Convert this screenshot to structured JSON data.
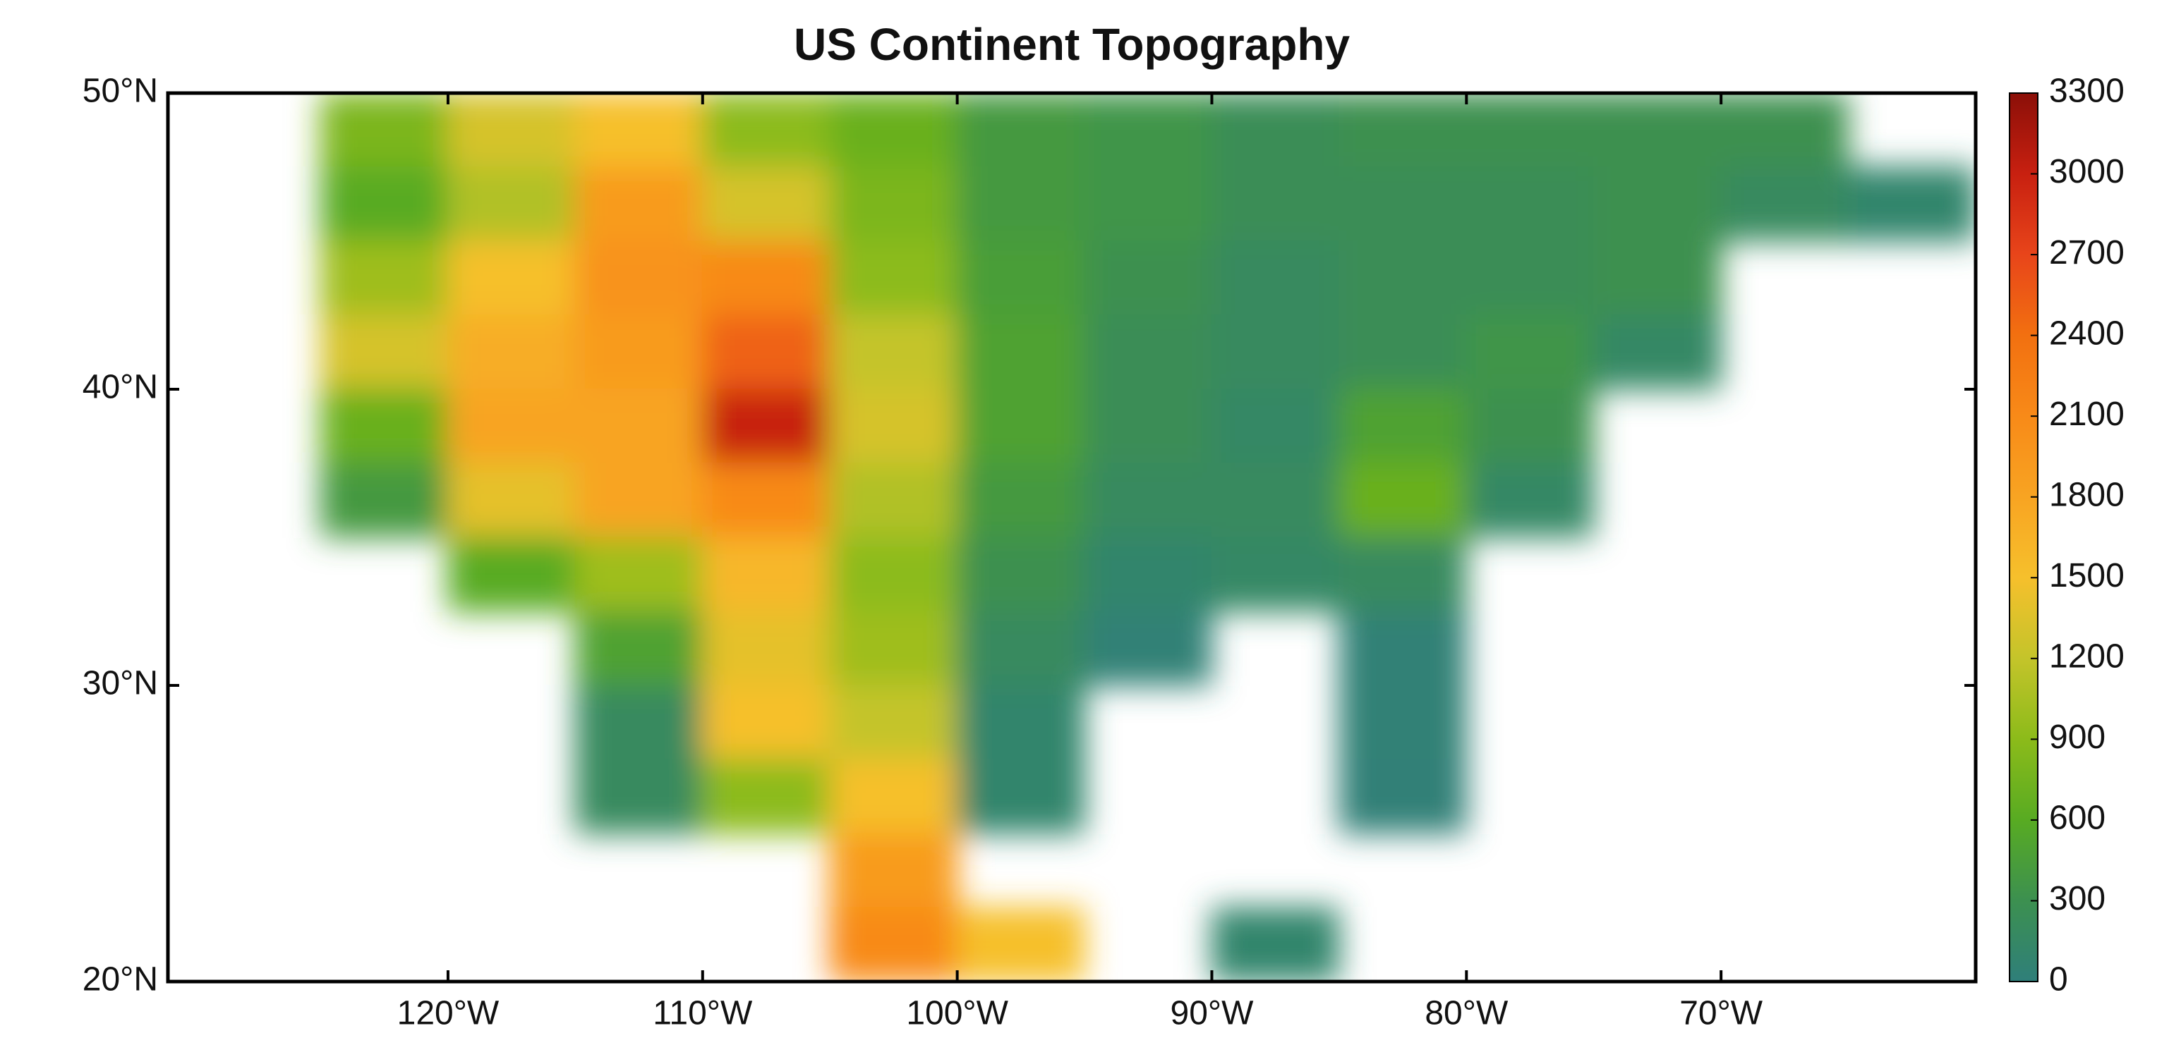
{
  "chart_data": {
    "type": "map",
    "title": "US Continent Topography",
    "xlim": [
      -131,
      -60
    ],
    "ylim": [
      20,
      50
    ],
    "xticks": [
      {
        "value": -120,
        "label": "120°W"
      },
      {
        "value": -110,
        "label": "110°W"
      },
      {
        "value": -100,
        "label": "100°W"
      },
      {
        "value": -90,
        "label": "90°W"
      },
      {
        "value": -80,
        "label": "80°W"
      },
      {
        "value": -70,
        "label": "70°W"
      }
    ],
    "yticks": [
      {
        "value": 20,
        "label": "20°N"
      },
      {
        "value": 30,
        "label": "30°N"
      },
      {
        "value": 40,
        "label": "40°N"
      },
      {
        "value": 50,
        "label": "50°N"
      }
    ],
    "lon": [
      -127.5,
      -122.5,
      -117.5,
      -112.5,
      -107.5,
      -102.5,
      -97.5,
      -92.5,
      -87.5,
      -82.5,
      -77.5,
      -72.5,
      -67.5,
      -62.5
    ],
    "lat": [
      48.75,
      46.25,
      43.75,
      41.25,
      38.75,
      36.25,
      33.75,
      31.25,
      28.75,
      26.25,
      23.75,
      21.25
    ],
    "elevation": [
      [
        null,
        800,
        1300,
        1500,
        900,
        700,
        400,
        350,
        250,
        300,
        300,
        300,
        300,
        null
      ],
      [
        null,
        600,
        1100,
        1900,
        1300,
        800,
        400,
        350,
        250,
        250,
        250,
        300,
        200,
        100
      ],
      [
        null,
        1000,
        1500,
        2000,
        2100,
        900,
        450,
        300,
        200,
        250,
        250,
        300,
        null,
        null
      ],
      [
        null,
        1300,
        1700,
        1900,
        2500,
        1200,
        500,
        250,
        200,
        250,
        350,
        150,
        null,
        null
      ],
      [
        null,
        700,
        1800,
        1800,
        3000,
        1300,
        500,
        250,
        150,
        500,
        300,
        null,
        null,
        null
      ],
      [
        null,
        400,
        1400,
        1800,
        2100,
        1100,
        400,
        200,
        200,
        700,
        150,
        null,
        null,
        null
      ],
      [
        null,
        null,
        600,
        1000,
        1600,
        900,
        300,
        100,
        150,
        200,
        null,
        null,
        null,
        null
      ],
      [
        null,
        null,
        null,
        500,
        1400,
        1000,
        200,
        30,
        null,
        30,
        null,
        null,
        null,
        null
      ],
      [
        null,
        null,
        null,
        200,
        1500,
        1200,
        100,
        null,
        null,
        30,
        null,
        null,
        null,
        null
      ],
      [
        null,
        null,
        null,
        200,
        900,
        1500,
        100,
        null,
        null,
        20,
        null,
        null,
        null,
        null
      ],
      [
        null,
        null,
        null,
        null,
        null,
        1900,
        null,
        null,
        null,
        null,
        null,
        null,
        null,
        null
      ],
      [
        null,
        null,
        null,
        null,
        null,
        2100,
        1500,
        null,
        100,
        null,
        null,
        null,
        null,
        null
      ]
    ],
    "clim": [
      0,
      3300
    ],
    "cticks": [
      0,
      300,
      600,
      900,
      1200,
      1500,
      1800,
      2100,
      2400,
      2700,
      3000,
      3300
    ],
    "colormap": [
      "#2f7f7a",
      "#3c9050",
      "#58ab22",
      "#8cbb1a",
      "#c4c42a",
      "#f6c02c",
      "#f8a422",
      "#f88a18",
      "#f27010",
      "#e8451a",
      "#c82010",
      "#8b0f08"
    ]
  }
}
